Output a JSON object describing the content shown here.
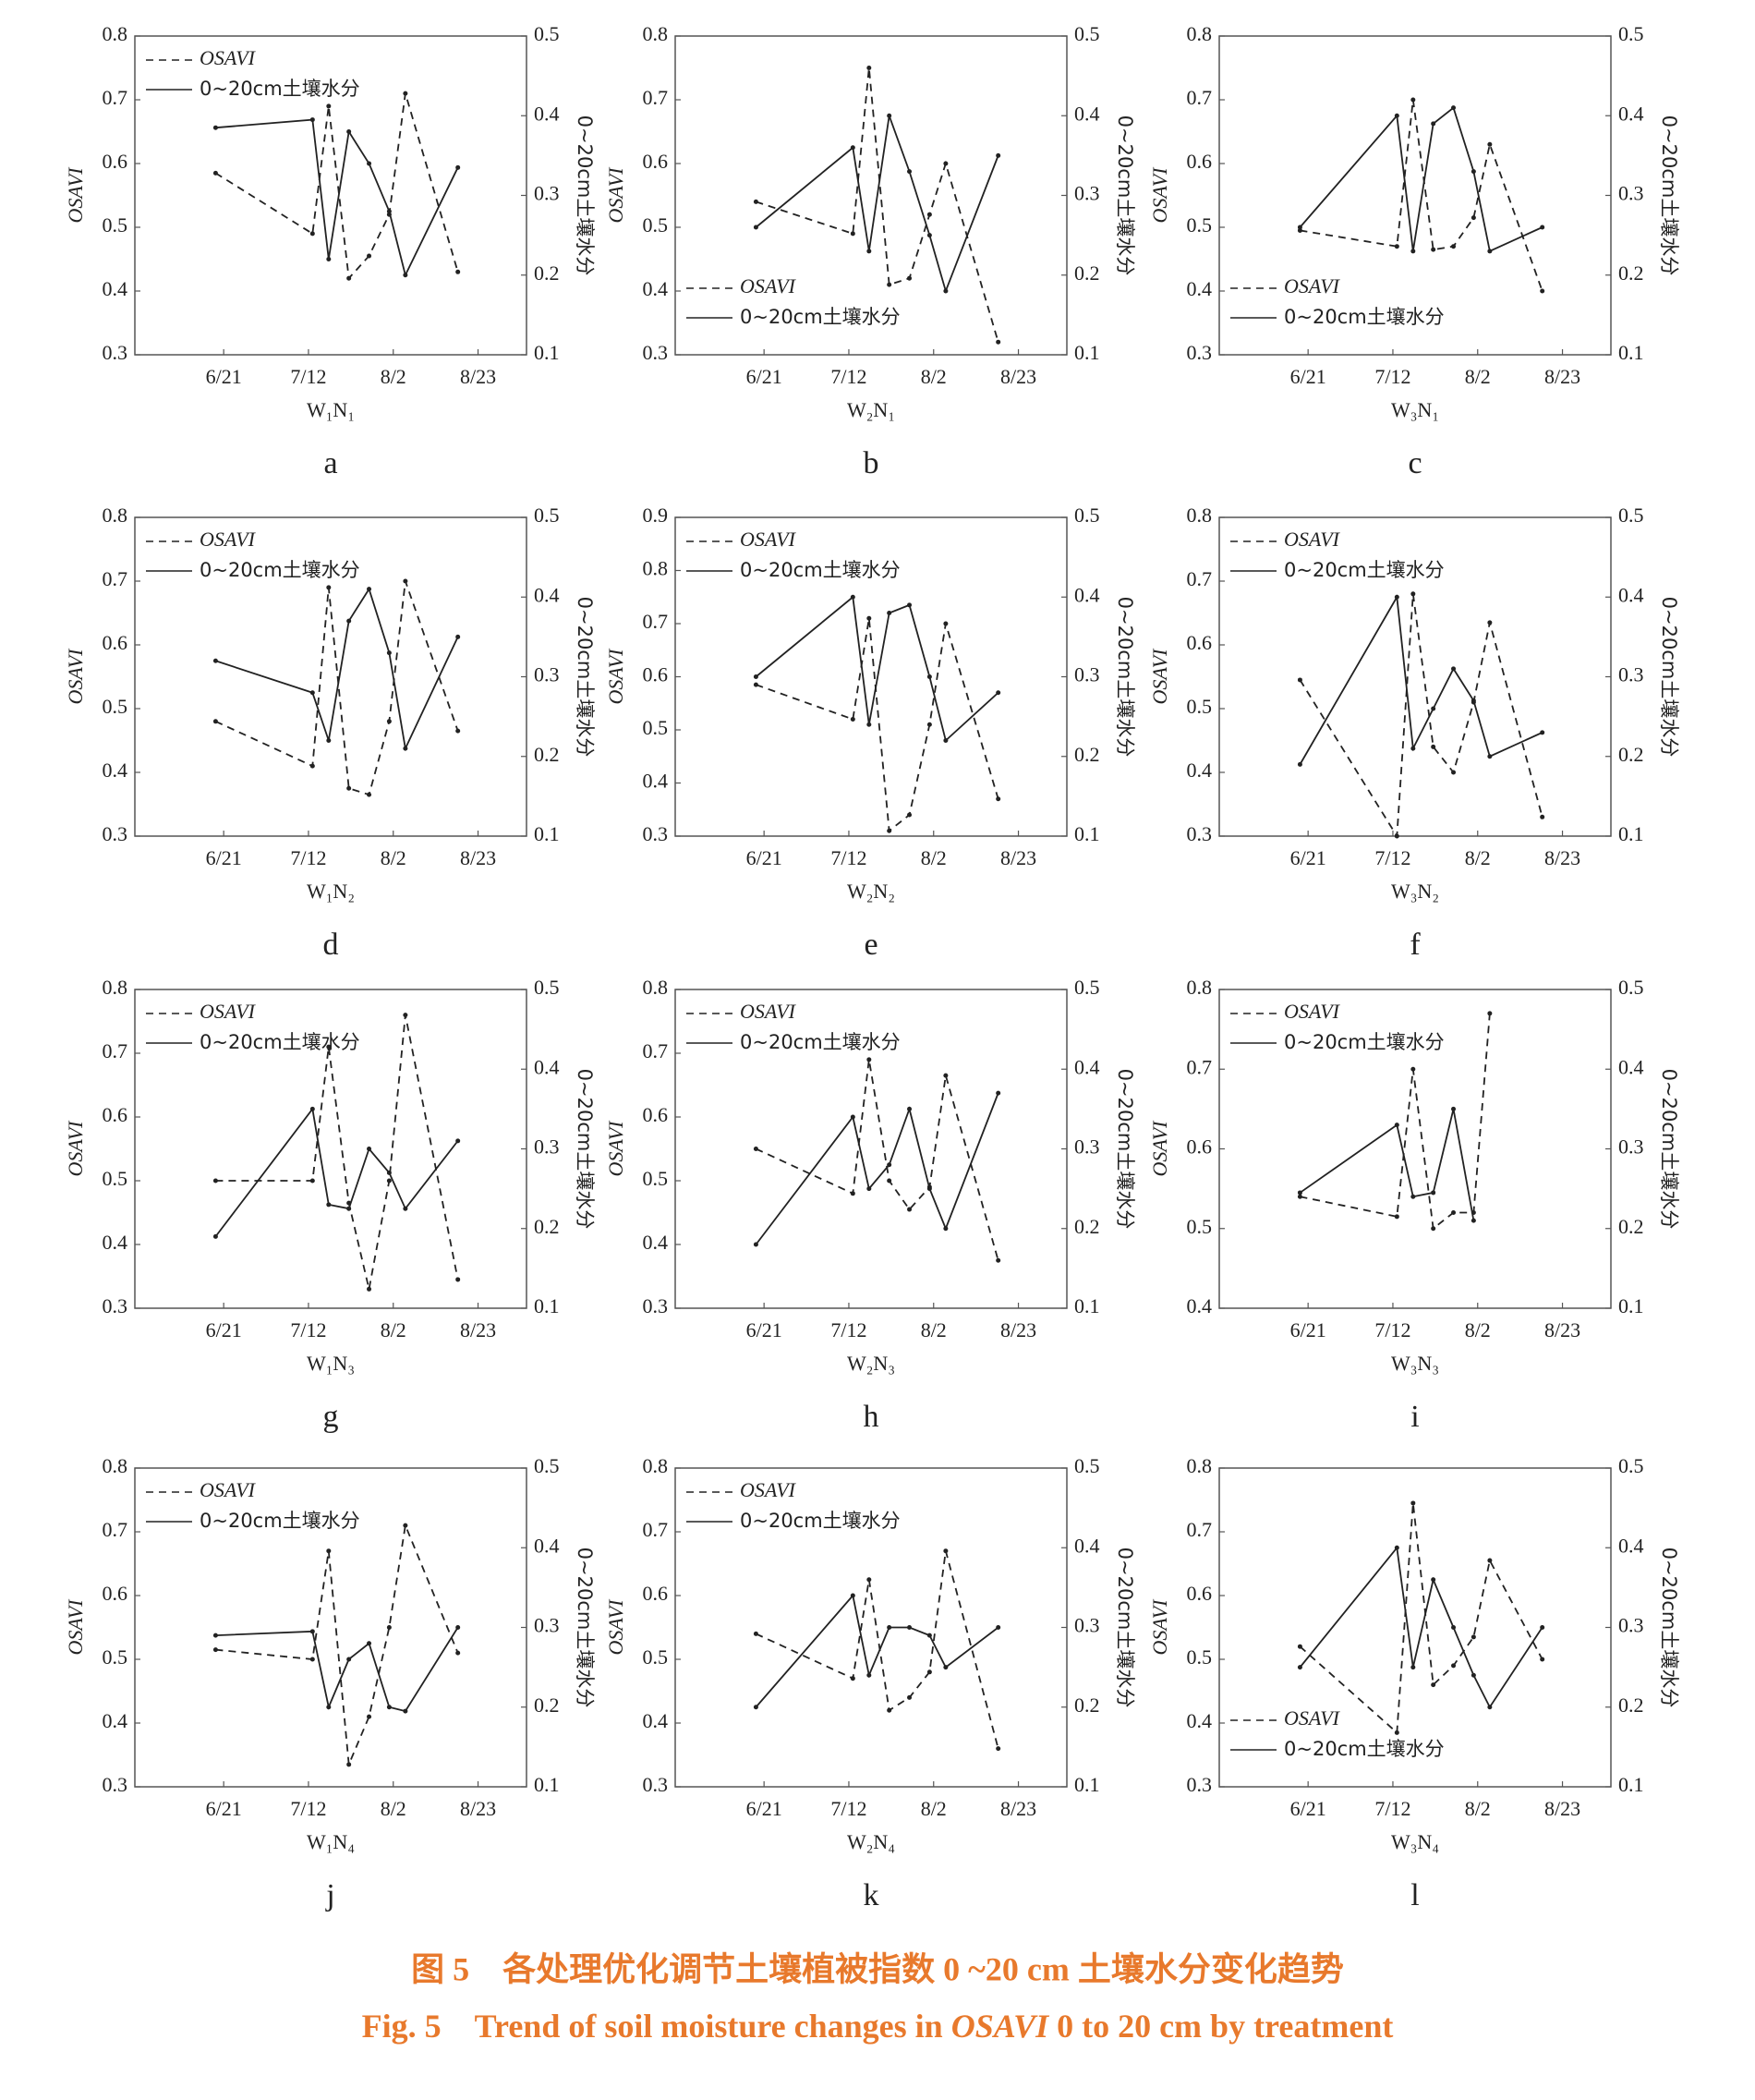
{
  "chart_data": [
    {
      "type": "line",
      "panel": "a",
      "xlabel": "W₁N₁",
      "ylabel": "OSAVI",
      "y2label": "0~20cm土壤水分",
      "legend": "upper left",
      "x": [
        "6/19",
        "7/13",
        "7/17",
        "7/22",
        "7/27",
        "8/1",
        "8/5",
        "8/18"
      ],
      "xlim": [
        "5/30",
        "9/4"
      ],
      "xticks": [
        "6/21",
        "7/12",
        "8/2",
        "8/23"
      ],
      "ylim": [
        0.3,
        0.8
      ],
      "yticks": [
        0.3,
        0.4,
        0.5,
        0.6,
        0.7,
        0.8
      ],
      "y2lim": [
        0.1,
        0.5
      ],
      "y2ticks": [
        0.1,
        0.2,
        0.3,
        0.4,
        0.5
      ],
      "series": [
        {
          "name": "OSAVI",
          "color": "#222222",
          "linestyle": "dashed",
          "values": [
            0.585,
            0.49,
            0.69,
            0.42,
            0.455,
            0.52,
            0.71,
            0.43
          ]
        },
        {
          "name": "0~20cm土壤水分",
          "color": "#222222",
          "linestyle": "solid",
          "axis": "y2",
          "values": [
            0.385,
            0.395,
            0.22,
            0.38,
            0.34,
            0.28,
            0.2,
            0.335
          ]
        }
      ]
    },
    {
      "type": "line",
      "panel": "b",
      "xlabel": "W₂N₁",
      "ylabel": "OSAVI",
      "y2label": "0~20cm土壤水分",
      "legend": "lower left",
      "x": [
        "6/19",
        "7/13",
        "7/17",
        "7/22",
        "7/27",
        "8/1",
        "8/5",
        "8/18"
      ],
      "xlim": [
        "5/30",
        "9/4"
      ],
      "xticks": [
        "6/21",
        "7/12",
        "8/2",
        "8/23"
      ],
      "ylim": [
        0.3,
        0.8
      ],
      "yticks": [
        0.3,
        0.4,
        0.5,
        0.6,
        0.7,
        0.8
      ],
      "y2lim": [
        0.1,
        0.5
      ],
      "y2ticks": [
        0.1,
        0.2,
        0.3,
        0.4,
        0.5
      ],
      "series": [
        {
          "name": "OSAVI",
          "color": "#222222",
          "linestyle": "dashed",
          "values": [
            0.54,
            0.49,
            0.75,
            0.41,
            0.42,
            0.52,
            0.6,
            0.32
          ]
        },
        {
          "name": "0~20cm土壤水分",
          "color": "#222222",
          "linestyle": "solid",
          "axis": "y2",
          "values": [
            0.26,
            0.36,
            0.23,
            0.4,
            0.33,
            0.25,
            0.18,
            0.35
          ]
        }
      ]
    },
    {
      "type": "line",
      "panel": "c",
      "xlabel": "W₃N₁",
      "ylabel": "OSAVI",
      "y2label": "0~20cm土壤水分",
      "legend": "lower left",
      "x": [
        "6/19",
        "7/13",
        "7/17",
        "7/22",
        "7/27",
        "8/1",
        "8/5",
        "8/18"
      ],
      "xlim": [
        "5/30",
        "9/4"
      ],
      "xticks": [
        "6/21",
        "7/12",
        "8/2",
        "8/23"
      ],
      "ylim": [
        0.3,
        0.8
      ],
      "yticks": [
        0.3,
        0.4,
        0.5,
        0.6,
        0.7,
        0.8
      ],
      "y2lim": [
        0.1,
        0.5
      ],
      "y2ticks": [
        0.1,
        0.2,
        0.3,
        0.4,
        0.5
      ],
      "series": [
        {
          "name": "OSAVI",
          "color": "#222222",
          "linestyle": "dashed",
          "values": [
            0.495,
            0.47,
            0.7,
            0.465,
            0.47,
            0.515,
            0.63,
            0.4
          ]
        },
        {
          "name": "0~20cm土壤水分",
          "color": "#222222",
          "linestyle": "solid",
          "axis": "y2",
          "values": [
            0.26,
            0.4,
            0.23,
            0.39,
            0.41,
            0.33,
            0.23,
            0.26
          ]
        }
      ]
    },
    {
      "type": "line",
      "panel": "d",
      "xlabel": "W₁N₂",
      "ylabel": "OSAVI",
      "y2label": "0~20cm土壤水分",
      "legend": "upper left",
      "x": [
        "6/19",
        "7/13",
        "7/17",
        "7/22",
        "7/27",
        "8/1",
        "8/5",
        "8/18"
      ],
      "xlim": [
        "5/30",
        "9/4"
      ],
      "xticks": [
        "6/21",
        "7/12",
        "8/2",
        "8/23"
      ],
      "ylim": [
        0.3,
        0.8
      ],
      "yticks": [
        0.3,
        0.4,
        0.5,
        0.6,
        0.7,
        0.8
      ],
      "y2lim": [
        0.1,
        0.5
      ],
      "y2ticks": [
        0.1,
        0.2,
        0.3,
        0.4,
        0.5
      ],
      "series": [
        {
          "name": "OSAVI",
          "color": "#222222",
          "linestyle": "dashed",
          "values": [
            0.48,
            0.41,
            0.69,
            0.375,
            0.365,
            0.48,
            0.7,
            0.465
          ]
        },
        {
          "name": "0~20cm土壤水分",
          "color": "#222222",
          "linestyle": "solid",
          "axis": "y2",
          "values": [
            0.32,
            0.28,
            0.22,
            0.37,
            0.41,
            0.33,
            0.21,
            0.35
          ]
        }
      ]
    },
    {
      "type": "line",
      "panel": "e",
      "xlabel": "W₂N₂",
      "ylabel": "OSAVI",
      "y2label": "0~20cm土壤水分",
      "legend": "upper left",
      "x": [
        "6/19",
        "7/13",
        "7/17",
        "7/22",
        "7/27",
        "8/1",
        "8/5",
        "8/18"
      ],
      "xlim": [
        "5/30",
        "9/4"
      ],
      "xticks": [
        "6/21",
        "7/12",
        "8/2",
        "8/23"
      ],
      "ylim": [
        0.3,
        0.9
      ],
      "yticks": [
        0.3,
        0.4,
        0.5,
        0.6,
        0.7,
        0.8,
        0.9
      ],
      "y2lim": [
        0.1,
        0.5
      ],
      "y2ticks": [
        0.1,
        0.2,
        0.3,
        0.4,
        0.5
      ],
      "series": [
        {
          "name": "OSAVI",
          "color": "#222222",
          "linestyle": "dashed",
          "values": [
            0.585,
            0.52,
            0.71,
            0.31,
            0.34,
            0.51,
            0.7,
            0.37
          ]
        },
        {
          "name": "0~20cm土壤水分",
          "color": "#222222",
          "linestyle": "solid",
          "axis": "y2",
          "values": [
            0.3,
            0.4,
            0.24,
            0.38,
            0.39,
            0.3,
            0.22,
            0.28
          ]
        }
      ]
    },
    {
      "type": "line",
      "panel": "f",
      "xlabel": "W₃N₂",
      "ylabel": "OSAVI",
      "y2label": "0~20cm土壤水分",
      "legend": "upper left",
      "x": [
        "6/19",
        "7/13",
        "7/17",
        "7/22",
        "7/27",
        "8/1",
        "8/5",
        "8/18"
      ],
      "xlim": [
        "5/30",
        "9/4"
      ],
      "xticks": [
        "6/21",
        "7/12",
        "8/2",
        "8/23"
      ],
      "ylim": [
        0.3,
        0.8
      ],
      "yticks": [
        0.3,
        0.4,
        0.5,
        0.6,
        0.7,
        0.8
      ],
      "y2lim": [
        0.1,
        0.5
      ],
      "y2ticks": [
        0.1,
        0.2,
        0.3,
        0.4,
        0.5
      ],
      "series": [
        {
          "name": "OSAVI",
          "color": "#222222",
          "linestyle": "dashed",
          "values": [
            0.545,
            0.3,
            0.68,
            0.44,
            0.4,
            0.51,
            0.635,
            0.33
          ]
        },
        {
          "name": "0~20cm土壤水分",
          "color": "#222222",
          "linestyle": "solid",
          "axis": "y2",
          "values": [
            0.19,
            0.4,
            0.21,
            0.26,
            0.31,
            0.27,
            0.2,
            0.23
          ]
        }
      ]
    },
    {
      "type": "line",
      "panel": "g",
      "xlabel": "W₁N₃",
      "ylabel": "OSAVI",
      "y2label": "0~20cm土壤水分",
      "legend": "upper left",
      "x": [
        "6/19",
        "7/13",
        "7/17",
        "7/22",
        "7/27",
        "8/1",
        "8/5",
        "8/18"
      ],
      "xlim": [
        "5/30",
        "9/4"
      ],
      "xticks": [
        "6/21",
        "7/12",
        "8/2",
        "8/23"
      ],
      "ylim": [
        0.3,
        0.8
      ],
      "yticks": [
        0.3,
        0.4,
        0.5,
        0.6,
        0.7,
        0.8
      ],
      "y2lim": [
        0.1,
        0.5
      ],
      "y2ticks": [
        0.1,
        0.2,
        0.3,
        0.4,
        0.5
      ],
      "series": [
        {
          "name": "OSAVI",
          "color": "#222222",
          "linestyle": "dashed",
          "values": [
            0.5,
            0.5,
            0.71,
            0.465,
            0.33,
            0.5,
            0.76,
            0.345
          ]
        },
        {
          "name": "0~20cm土壤水分",
          "color": "#222222",
          "linestyle": "solid",
          "axis": "y2",
          "values": [
            0.19,
            0.35,
            0.23,
            0.225,
            0.3,
            0.27,
            0.225,
            0.31
          ]
        }
      ]
    },
    {
      "type": "line",
      "panel": "h",
      "xlabel": "W₂N₃",
      "ylabel": "OSAVI",
      "y2label": "0~20cm土壤水分",
      "legend": "upper left",
      "x": [
        "6/19",
        "7/13",
        "7/17",
        "7/22",
        "7/27",
        "8/1",
        "8/5",
        "8/18"
      ],
      "xlim": [
        "5/30",
        "9/4"
      ],
      "xticks": [
        "6/21",
        "7/12",
        "8/2",
        "8/23"
      ],
      "ylim": [
        0.3,
        0.8
      ],
      "yticks": [
        0.3,
        0.4,
        0.5,
        0.6,
        0.7,
        0.8
      ],
      "y2lim": [
        0.1,
        0.5
      ],
      "y2ticks": [
        0.1,
        0.2,
        0.3,
        0.4,
        0.5
      ],
      "series": [
        {
          "name": "OSAVI",
          "color": "#222222",
          "linestyle": "dashed",
          "values": [
            0.55,
            0.48,
            0.69,
            0.5,
            0.455,
            0.49,
            0.665,
            0.375
          ]
        },
        {
          "name": "0~20cm土壤水分",
          "color": "#222222",
          "linestyle": "solid",
          "axis": "y2",
          "values": [
            0.18,
            0.34,
            0.25,
            0.28,
            0.35,
            0.25,
            0.2,
            0.37
          ]
        }
      ]
    },
    {
      "type": "line",
      "panel": "i",
      "xlabel": "W₃N₃",
      "ylabel": "OSAVI",
      "y2label": "0~20cm土壤水分",
      "legend": "upper left",
      "x": [
        "6/19",
        "7/13",
        "7/17",
        "7/22",
        "7/27",
        "8/1",
        "8/5",
        "8/18"
      ],
      "xlim": [
        "5/30",
        "9/4"
      ],
      "xticks": [
        "6/21",
        "7/12",
        "8/2",
        "8/23"
      ],
      "ylim": [
        0.4,
        0.8
      ],
      "yticks": [
        0.4,
        0.5,
        0.6,
        0.7,
        0.8
      ],
      "y2lim": [
        0.1,
        0.5
      ],
      "y2ticks": [
        0.1,
        0.2,
        0.3,
        0.4,
        0.5
      ],
      "series": [
        {
          "name": "OSAVI",
          "color": "#222222",
          "linestyle": "dashed",
          "values": [
            0.54,
            0.515,
            0.7,
            0.5,
            0.52,
            0.52,
            0.77,
            null
          ]
        },
        {
          "name": "0~20cm土壤水分",
          "color": "#222222",
          "linestyle": "solid",
          "axis": "y2",
          "values": [
            0.245,
            0.33,
            0.24,
            0.245,
            0.35,
            0.21,
            null,
            null
          ]
        }
      ]
    },
    {
      "type": "line",
      "panel": "j",
      "xlabel": "W₁N₄",
      "ylabel": "OSAVI",
      "y2label": "0~20cm土壤水分",
      "legend": "upper left",
      "x": [
        "6/19",
        "7/13",
        "7/17",
        "7/22",
        "7/27",
        "8/1",
        "8/5",
        "8/18"
      ],
      "xlim": [
        "5/30",
        "9/4"
      ],
      "xticks": [
        "6/21",
        "7/12",
        "8/2",
        "8/23"
      ],
      "ylim": [
        0.3,
        0.8
      ],
      "yticks": [
        0.3,
        0.4,
        0.5,
        0.6,
        0.7,
        0.8
      ],
      "y2lim": [
        0.1,
        0.5
      ],
      "y2ticks": [
        0.1,
        0.2,
        0.3,
        0.4,
        0.5
      ],
      "series": [
        {
          "name": "OSAVI",
          "color": "#222222",
          "linestyle": "dashed",
          "values": [
            0.515,
            0.5,
            0.67,
            0.335,
            0.41,
            0.55,
            0.71,
            0.51
          ]
        },
        {
          "name": "0~20cm土壤水分",
          "color": "#222222",
          "linestyle": "solid",
          "axis": "y2",
          "values": [
            0.29,
            0.295,
            0.2,
            0.26,
            0.28,
            0.2,
            0.195,
            0.3
          ]
        }
      ]
    },
    {
      "type": "line",
      "panel": "k",
      "xlabel": "W₂N₄",
      "ylabel": "OSAVI",
      "y2label": "0~20cm土壤水分",
      "legend": "upper left",
      "x": [
        "6/19",
        "7/13",
        "7/17",
        "7/22",
        "7/27",
        "8/1",
        "8/5",
        "8/18"
      ],
      "xlim": [
        "5/30",
        "9/4"
      ],
      "xticks": [
        "6/21",
        "7/12",
        "8/2",
        "8/23"
      ],
      "ylim": [
        0.3,
        0.8
      ],
      "yticks": [
        0.3,
        0.4,
        0.5,
        0.6,
        0.7,
        0.8
      ],
      "y2lim": [
        0.1,
        0.5
      ],
      "y2ticks": [
        0.1,
        0.2,
        0.3,
        0.4,
        0.5
      ],
      "series": [
        {
          "name": "OSAVI",
          "color": "#222222",
          "linestyle": "dashed",
          "values": [
            0.54,
            0.47,
            0.625,
            0.42,
            0.44,
            0.48,
            0.67,
            0.36
          ]
        },
        {
          "name": "0~20cm土壤水分",
          "color": "#222222",
          "linestyle": "solid",
          "axis": "y2",
          "values": [
            0.2,
            0.34,
            0.24,
            0.3,
            0.3,
            0.29,
            0.25,
            0.3
          ]
        }
      ]
    },
    {
      "type": "line",
      "panel": "l",
      "xlabel": "W₃N₄",
      "ylabel": "OSAVI",
      "y2label": "0~20cm土壤水分",
      "legend": "lower left",
      "x": [
        "6/19",
        "7/13",
        "7/17",
        "7/22",
        "7/27",
        "8/1",
        "8/5",
        "8/18"
      ],
      "xlim": [
        "5/30",
        "9/4"
      ],
      "xticks": [
        "6/21",
        "7/12",
        "8/2",
        "8/23"
      ],
      "ylim": [
        0.3,
        0.8
      ],
      "yticks": [
        0.3,
        0.4,
        0.5,
        0.6,
        0.7,
        0.8
      ],
      "y2lim": [
        0.1,
        0.5
      ],
      "y2ticks": [
        0.1,
        0.2,
        0.3,
        0.4,
        0.5
      ],
      "series": [
        {
          "name": "OSAVI",
          "color": "#222222",
          "linestyle": "dashed",
          "values": [
            0.52,
            0.385,
            0.745,
            0.46,
            0.49,
            0.535,
            0.655,
            0.5
          ]
        },
        {
          "name": "0~20cm土壤水分",
          "color": "#222222",
          "linestyle": "solid",
          "axis": "y2",
          "values": [
            0.25,
            0.4,
            0.25,
            0.36,
            0.3,
            0.24,
            0.2,
            0.3
          ]
        }
      ]
    }
  ],
  "caption": {
    "zh": "图 5　各处理优化调节土壤植被指数 0 ~20 cm 土壤水分变化趋势",
    "en": [
      "Fig. 5　Trend of soil moisture changes in ",
      "OSAVI",
      " 0 to 20 cm by treatment"
    ]
  }
}
